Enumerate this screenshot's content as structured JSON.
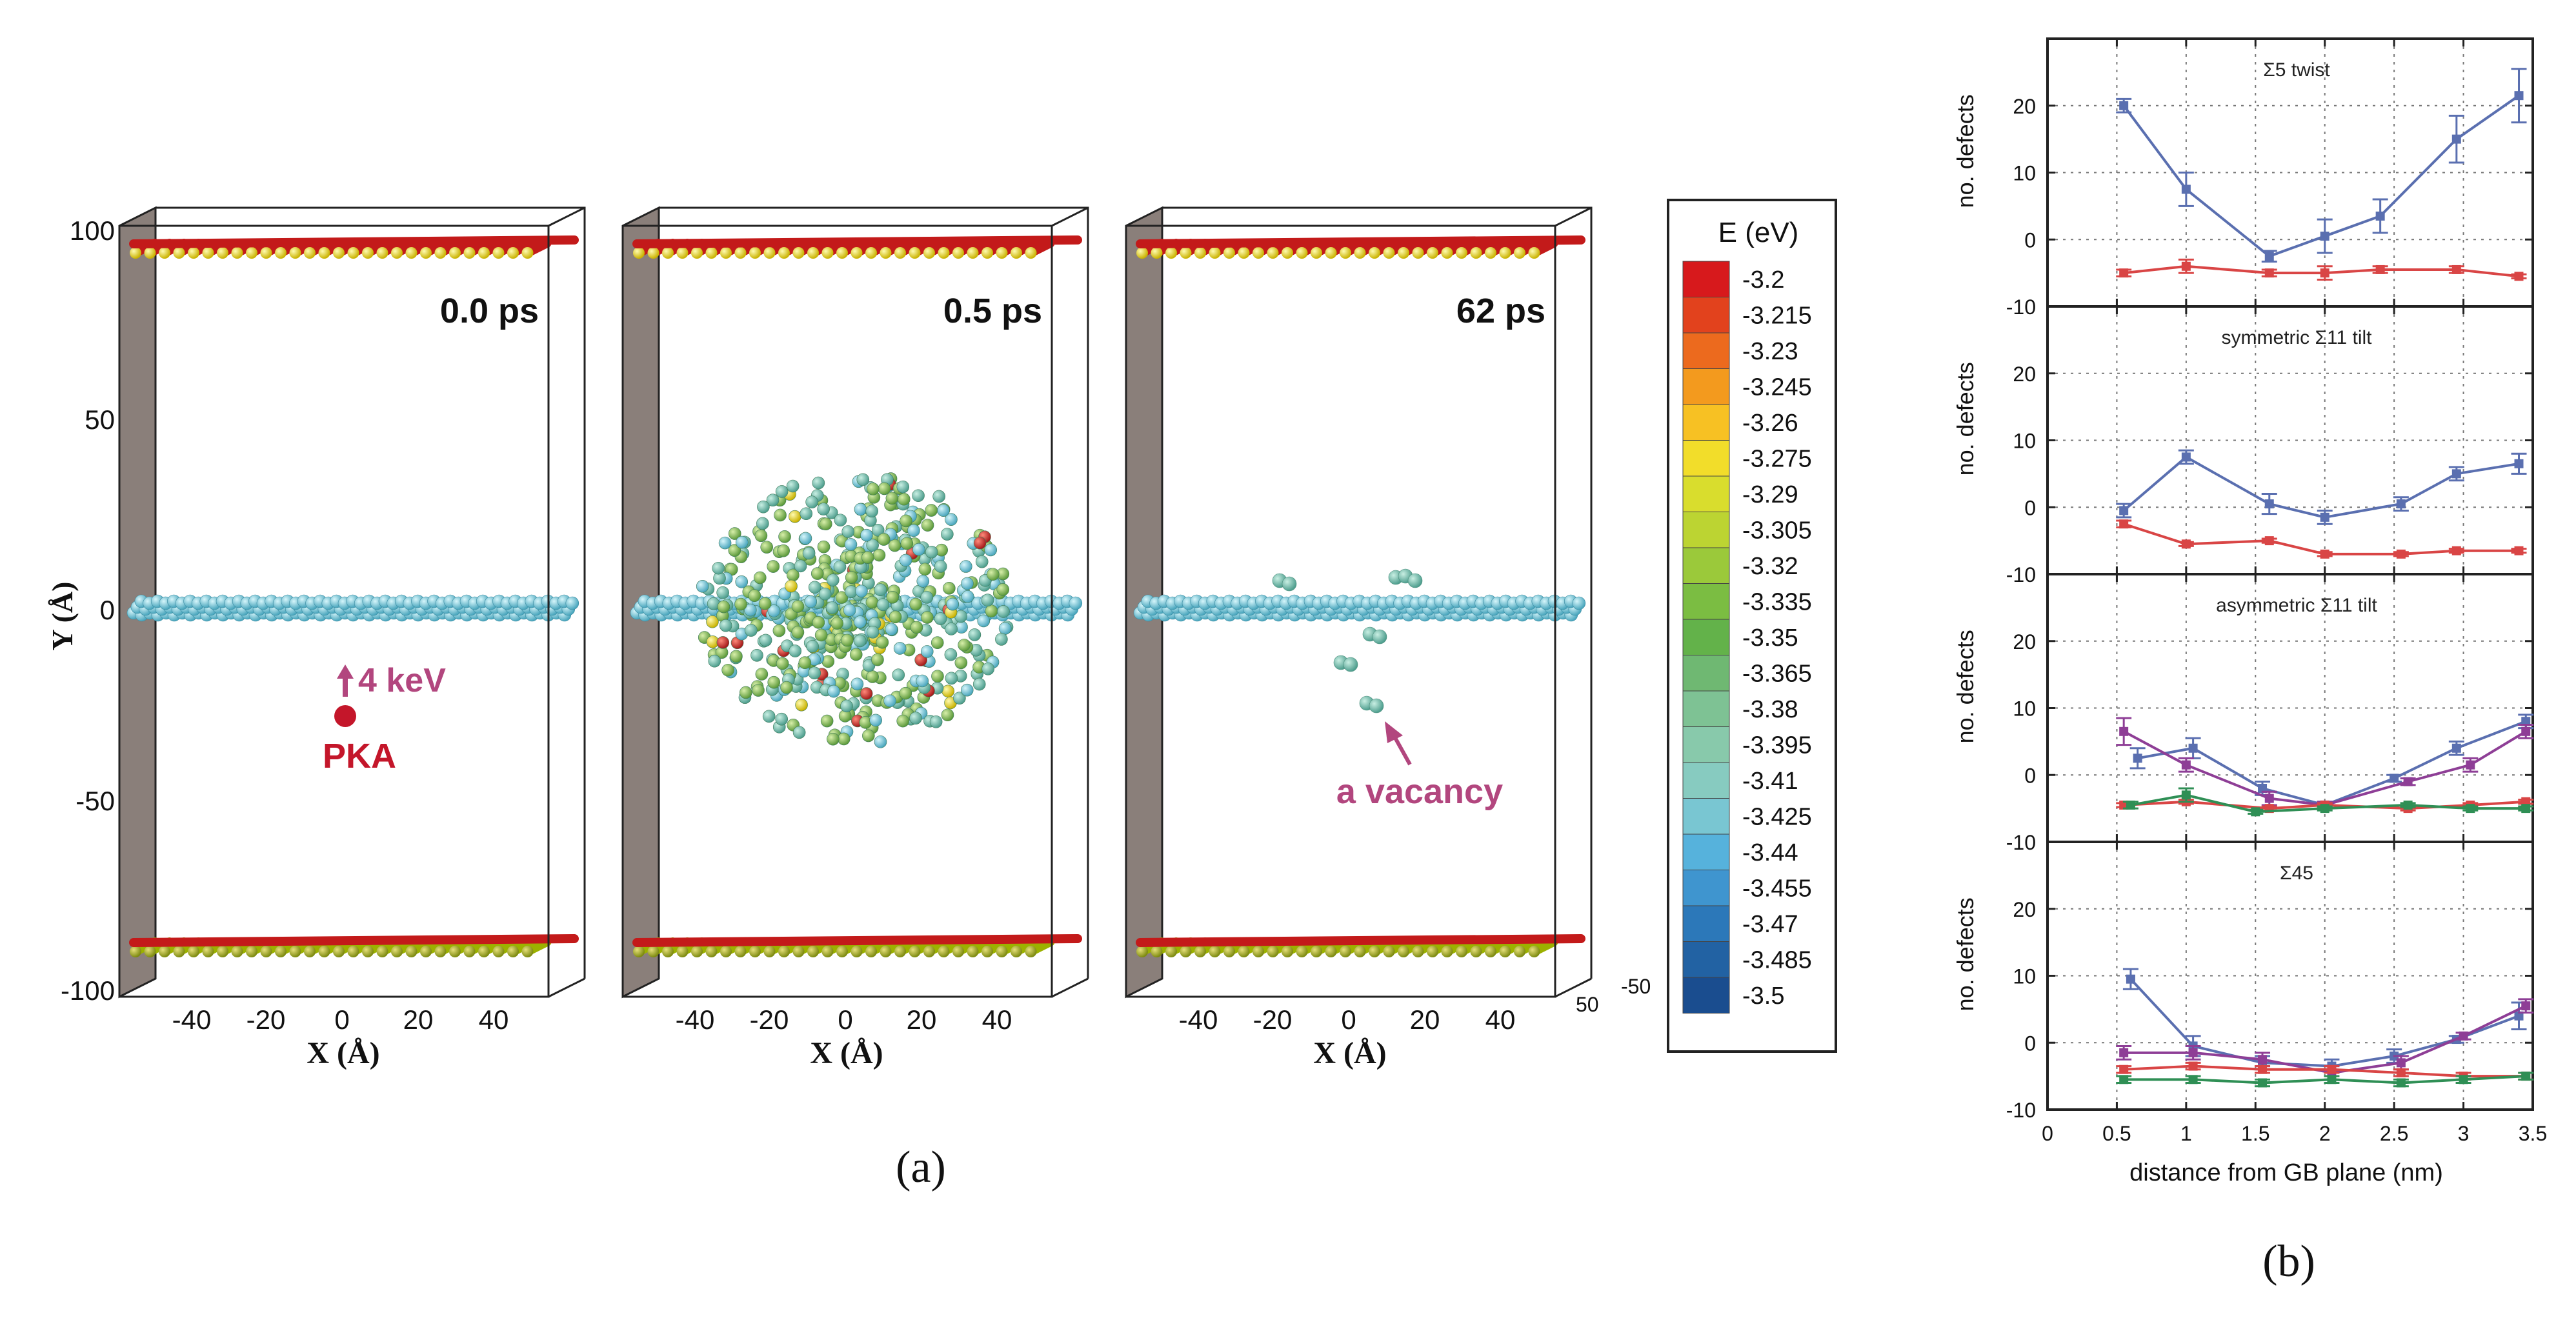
{
  "figure_a": {
    "label": "(a)",
    "y_axis_label": "Y (Å)",
    "y_ticks": [
      "100",
      "50",
      "0",
      "-50",
      "-100"
    ],
    "panels": [
      {
        "time": "0.0 ps",
        "x_axis_label": "X (Å)",
        "x_ticks": [
          "-40",
          "-20",
          "0",
          "20",
          "40"
        ]
      },
      {
        "time": "0.5 ps",
        "x_axis_label": "X (Å)",
        "x_ticks": [
          "-40",
          "-20",
          "0",
          "20",
          "40"
        ]
      },
      {
        "time": "62 ps",
        "x_axis_label": "X (Å)",
        "x_ticks": [
          "-40",
          "-20",
          "0",
          "20",
          "40"
        ]
      }
    ],
    "annotations": {
      "pka_energy": "4 keV",
      "pka": "PKA",
      "vacancy": "a vacancy"
    },
    "z_ticks": {
      "near": "50",
      "far": "-50"
    },
    "colorbar": {
      "title": "E (eV)",
      "levels": [
        "-3.2",
        "-3.215",
        "-3.23",
        "-3.245",
        "-3.26",
        "-3.275",
        "-3.29",
        "-3.305",
        "-3.32",
        "-3.335",
        "-3.35",
        "-3.365",
        "-3.38",
        "-3.395",
        "-3.41",
        "-3.425",
        "-3.44",
        "-3.455",
        "-3.47",
        "-3.485",
        "-3.5"
      ],
      "colors": [
        "#d7191c",
        "#e2421d",
        "#ec6a1e",
        "#f39a1e",
        "#f7c123",
        "#f2dd2a",
        "#d9dd2d",
        "#bcd432",
        "#9bc93a",
        "#7bbd42",
        "#63b24a",
        "#6fb872",
        "#7ec294",
        "#88c9ab",
        "#87cbc0",
        "#79c6d2",
        "#56b2dc",
        "#3f95cf",
        "#2c78b9",
        "#2262a3",
        "#1a4d8f"
      ]
    }
  },
  "figure_b": {
    "label": "(b)",
    "x_axis_label": "distance from GB plane (nm)",
    "x_ticks": [
      "0",
      "0.5",
      "1",
      "1.5",
      "2",
      "2.5",
      "3",
      "3.5"
    ],
    "y_axis_label": "no. defects",
    "y_ticks": [
      "20",
      "10",
      "0",
      "-10"
    ],
    "series_colors": {
      "blue": "#5a6fb0",
      "red": "#d94545",
      "purple": "#8e3e96",
      "green": "#2f8f55"
    }
  },
  "chart_data": [
    {
      "type": "line",
      "title": "Σ5 twist",
      "xlabel": "distance from GB plane (nm)",
      "ylabel": "no. defects",
      "xlim": [
        0,
        3.5
      ],
      "ylim": [
        -10,
        30
      ],
      "series": [
        {
          "name": "blue",
          "x": [
            0.55,
            1.0,
            1.6,
            2.0,
            2.4,
            2.95,
            3.4
          ],
          "values": [
            20,
            7.5,
            -2.5,
            0.5,
            3.5,
            15,
            21.5
          ],
          "err": [
            1,
            2.5,
            0.8,
            2.5,
            2.5,
            3.5,
            4
          ]
        },
        {
          "name": "red",
          "x": [
            0.55,
            1.0,
            1.6,
            2.0,
            2.4,
            2.95,
            3.4
          ],
          "values": [
            -5,
            -4,
            -5,
            -5,
            -4.5,
            -4.5,
            -5.5
          ],
          "err": [
            0.5,
            1,
            0.5,
            1,
            0.5,
            0.5,
            0.3
          ]
        }
      ]
    },
    {
      "type": "line",
      "title": "symmetric Σ11 tilt",
      "xlabel": "distance from GB plane (nm)",
      "ylabel": "no. defects",
      "xlim": [
        0,
        3.5
      ],
      "ylim": [
        -10,
        30
      ],
      "series": [
        {
          "name": "blue",
          "x": [
            0.55,
            1.0,
            1.6,
            2.0,
            2.55,
            2.95,
            3.4
          ],
          "values": [
            -0.5,
            7.5,
            0.5,
            -1.5,
            0.5,
            5,
            6.5
          ],
          "err": [
            1,
            1,
            1.5,
            1,
            1,
            1,
            1.5
          ]
        },
        {
          "name": "red",
          "x": [
            0.55,
            1.0,
            1.6,
            2.0,
            2.55,
            2.95,
            3.4
          ],
          "values": [
            -2.5,
            -5.5,
            -5,
            -7,
            -7,
            -6.5,
            -6.5
          ],
          "err": [
            0.5,
            0.3,
            0.3,
            0.3,
            0.3,
            0.3,
            0.3
          ]
        }
      ]
    },
    {
      "type": "line",
      "title": "asymmetric Σ11 tilt",
      "xlabel": "distance from GB plane (nm)",
      "ylabel": "no. defects",
      "xlim": [
        0,
        3.5
      ],
      "ylim": [
        -10,
        30
      ],
      "series": [
        {
          "name": "blue",
          "x": [
            0.65,
            1.05,
            1.55,
            2.0,
            2.5,
            2.95,
            3.45
          ],
          "values": [
            2.5,
            4,
            -2,
            -4.5,
            -0.5,
            4,
            8
          ],
          "err": [
            1.5,
            1.5,
            1,
            0.5,
            0.5,
            1,
            1
          ]
        },
        {
          "name": "purple",
          "x": [
            0.55,
            1.0,
            1.6,
            2.0,
            2.6,
            3.05,
            3.45
          ],
          "values": [
            6.5,
            1.5,
            -3.5,
            -4.5,
            -1,
            1.5,
            6.5
          ],
          "err": [
            2,
            1,
            1,
            0.5,
            0.5,
            1,
            1
          ]
        },
        {
          "name": "red",
          "x": [
            0.55,
            1.0,
            1.6,
            2.0,
            2.6,
            3.05,
            3.45
          ],
          "values": [
            -4.5,
            -4,
            -5,
            -4.5,
            -5,
            -4.5,
            -4
          ],
          "err": [
            0.3,
            0.3,
            0.3,
            0.3,
            0.3,
            0.3,
            0.3
          ]
        },
        {
          "name": "green",
          "x": [
            0.6,
            1.0,
            1.5,
            2.0,
            2.6,
            3.05,
            3.45
          ],
          "values": [
            -4.5,
            -3,
            -5.5,
            -5,
            -4.5,
            -5,
            -5
          ],
          "err": [
            0.5,
            1,
            0.3,
            0.3,
            0.3,
            0.3,
            0.3
          ]
        }
      ]
    },
    {
      "type": "line",
      "title": "Σ45",
      "xlabel": "distance from GB plane (nm)",
      "ylabel": "no. defects",
      "xlim": [
        0,
        3.5
      ],
      "ylim": [
        -10,
        30
      ],
      "series": [
        {
          "name": "blue",
          "x": [
            0.6,
            1.05,
            1.55,
            2.05,
            2.5,
            2.95,
            3.4
          ],
          "values": [
            9.5,
            -0.5,
            -3,
            -3.5,
            -2,
            0.5,
            4
          ],
          "err": [
            1.5,
            1.5,
            1,
            1,
            1,
            0.5,
            2
          ]
        },
        {
          "name": "purple",
          "x": [
            0.55,
            1.05,
            1.55,
            2.05,
            2.55,
            3.0,
            3.45
          ],
          "values": [
            -1.5,
            -1.5,
            -2.5,
            -4.5,
            -3,
            1,
            5.5
          ],
          "err": [
            1,
            1,
            1,
            1,
            1,
            0.5,
            1
          ]
        },
        {
          "name": "red",
          "x": [
            0.55,
            1.05,
            1.55,
            2.05,
            2.55,
            3.0,
            3.45
          ],
          "values": [
            -4,
            -3.5,
            -4,
            -4,
            -4.5,
            -5,
            -5
          ],
          "err": [
            0.5,
            0.5,
            0.5,
            0.5,
            0.5,
            0.5,
            0.5
          ]
        },
        {
          "name": "green",
          "x": [
            0.55,
            1.05,
            1.55,
            2.05,
            2.55,
            3.0,
            3.45
          ],
          "values": [
            -5.5,
            -5.5,
            -6,
            -5.5,
            -6,
            -5.5,
            -5
          ],
          "err": [
            0.5,
            0.5,
            0.5,
            0.5,
            0.5,
            0.5,
            0.5
          ]
        }
      ]
    }
  ]
}
